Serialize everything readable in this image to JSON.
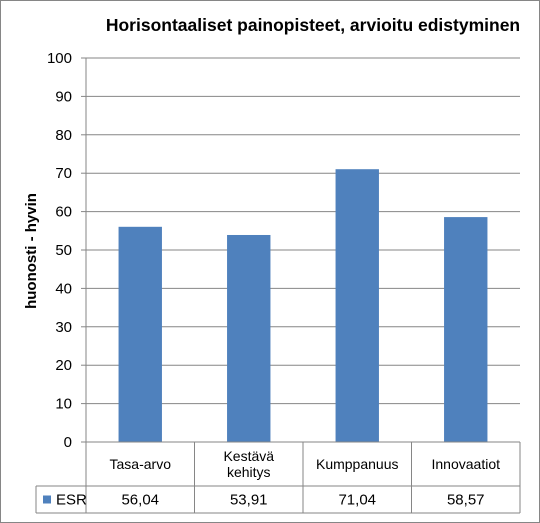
{
  "chart_data": {
    "type": "bar",
    "title": "Horisontaaliset painopisteet, arvioitu edistyminen",
    "ylabel": "huonosti - hyvin",
    "xlabel": "",
    "ylim": [
      0,
      100
    ],
    "yticks": [
      0,
      10,
      20,
      30,
      40,
      50,
      60,
      70,
      80,
      90,
      100
    ],
    "grid": true,
    "categories": [
      [
        "Tasa-arvo"
      ],
      [
        "Kestävä",
        "kehitys"
      ],
      [
        "Kumppanuus"
      ],
      [
        "Innovaatiot"
      ]
    ],
    "series": [
      {
        "name": "ESR",
        "values": [
          56.04,
          53.91,
          71.04,
          58.57
        ],
        "value_labels": [
          "56,04",
          "53,91",
          "71,04",
          "58,57"
        ],
        "color": "#4f81bd"
      }
    ],
    "legend": "data-table",
    "colors": {
      "grid": "#868686",
      "axis": "#868686"
    }
  }
}
